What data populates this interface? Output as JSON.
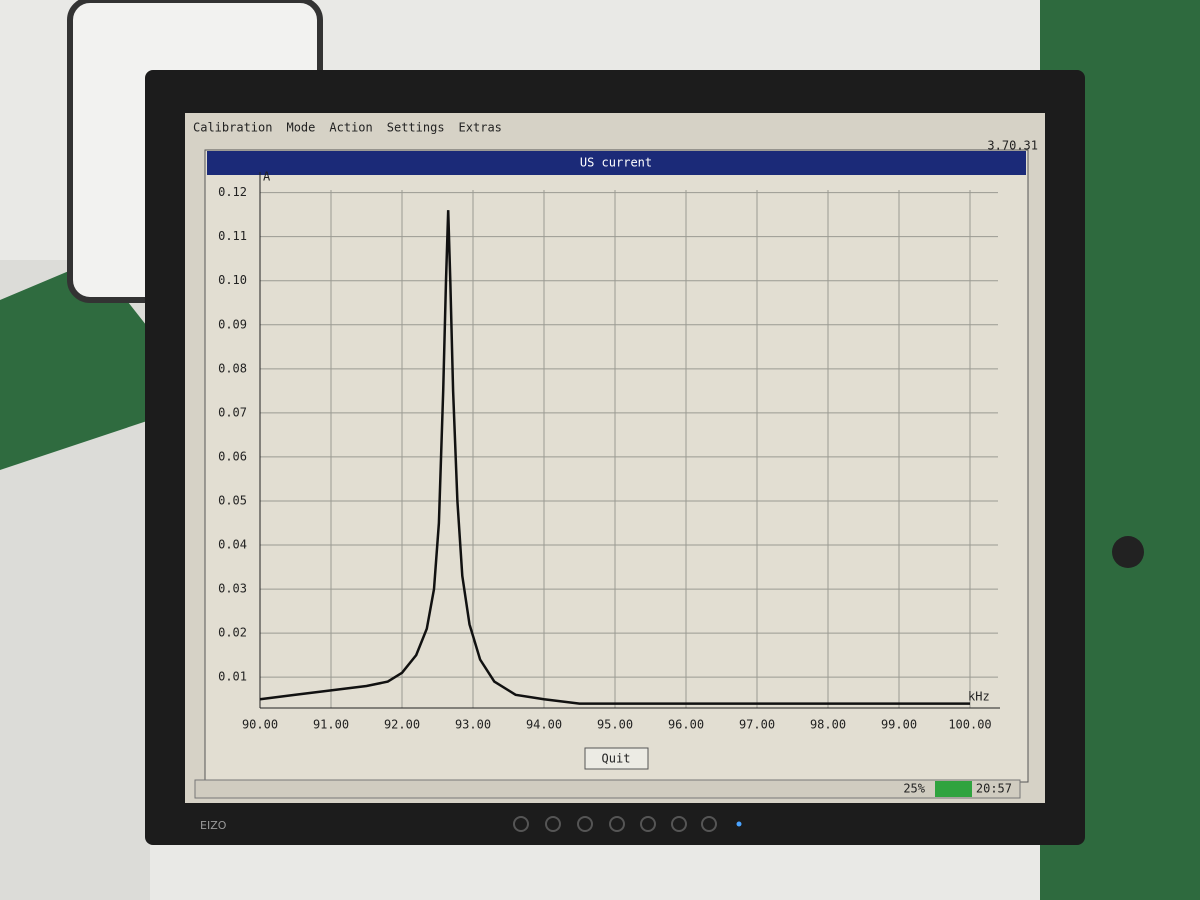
{
  "menu": [
    "Calibration",
    "Mode",
    "Action",
    "Settings",
    "Extras"
  ],
  "version": "3.70.31",
  "window_title": "US current",
  "chart_data": {
    "type": "line",
    "ylabel": "A",
    "xlabel": "kHz",
    "x": [
      90.0,
      90.5,
      91.0,
      91.5,
      91.8,
      92.0,
      92.2,
      92.35,
      92.45,
      92.52,
      92.58,
      92.62,
      92.65,
      92.68,
      92.72,
      92.78,
      92.85,
      92.95,
      93.1,
      93.3,
      93.6,
      94.0,
      94.5,
      95.0,
      96.0,
      97.0,
      98.0,
      99.0,
      100.0
    ],
    "values": [
      0.005,
      0.006,
      0.007,
      0.008,
      0.009,
      0.011,
      0.015,
      0.021,
      0.03,
      0.045,
      0.075,
      0.1,
      0.116,
      0.1,
      0.075,
      0.05,
      0.033,
      0.022,
      0.014,
      0.009,
      0.006,
      0.005,
      0.004,
      0.004,
      0.004,
      0.004,
      0.004,
      0.004,
      0.004
    ],
    "color": "#111111",
    "xlim": [
      90,
      100
    ],
    "xticks": [
      {
        "value": 90,
        "label": "90.00"
      },
      {
        "value": 91,
        "label": "91.00"
      },
      {
        "value": 92,
        "label": "92.00"
      },
      {
        "value": 93,
        "label": "93.00"
      },
      {
        "value": 94,
        "label": "94.00"
      },
      {
        "value": 95,
        "label": "95.00"
      },
      {
        "value": 96,
        "label": "96.00"
      },
      {
        "value": 97,
        "label": "97.00"
      },
      {
        "value": 98,
        "label": "98.00"
      },
      {
        "value": 99,
        "label": "99.00"
      },
      {
        "value": 100,
        "label": "100.00"
      }
    ],
    "ylim": [
      0.003,
      0.124
    ],
    "yticks": [
      0.01,
      0.02,
      0.03,
      0.04,
      0.05,
      0.06,
      0.07,
      0.08,
      0.09,
      {
        "value": 0.1,
        "label": "0.10"
      },
      0.11,
      0.12
    ],
    "grid": true
  },
  "button": "Quit",
  "status": {
    "load": "25%",
    "time": "20:57"
  },
  "brand": "EIZO"
}
